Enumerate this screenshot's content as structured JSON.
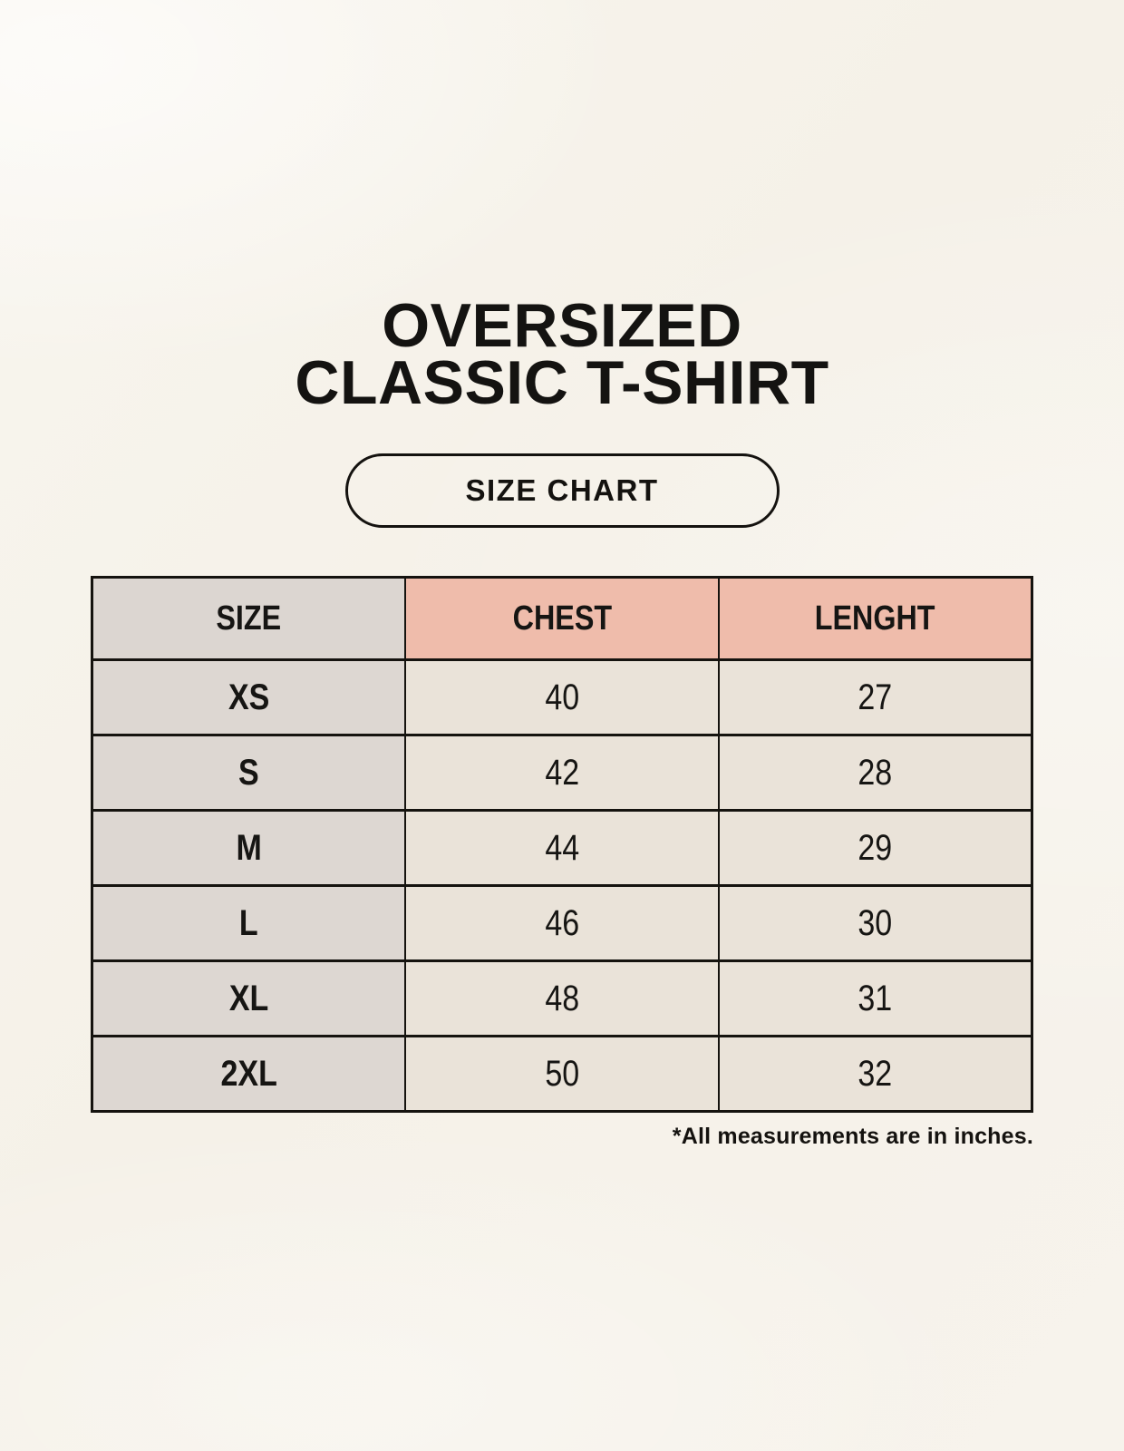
{
  "header": {
    "title_line1": "OVERSIZED",
    "title_line2": "CLASSIC T-SHIRT",
    "badge_label": "SIZE CHART"
  },
  "table": {
    "columns": [
      "SIZE",
      "CHEST",
      "LENGHT"
    ],
    "rows": [
      {
        "size": "XS",
        "chest": "40",
        "length": "27"
      },
      {
        "size": "S",
        "chest": "42",
        "length": "28"
      },
      {
        "size": "M",
        "chest": "44",
        "length": "29"
      },
      {
        "size": "L",
        "chest": "46",
        "length": "30"
      },
      {
        "size": "XL",
        "chest": "48",
        "length": "31"
      },
      {
        "size": "2XL",
        "chest": "50",
        "length": "32"
      }
    ]
  },
  "footnote": "*All measurements are in inches.",
  "colors": {
    "background": "#f6f2ea",
    "header_pink": "#efbcab",
    "header_gray": "#dcd6d1",
    "row_label_gray": "#ddd7d2",
    "cell_beige": "#eae3d9",
    "border": "#15130f",
    "text": "#141311"
  },
  "chart_data": {
    "type": "table",
    "title": "OVERSIZED CLASSIC T-SHIRT",
    "subtitle": "SIZE CHART",
    "columns": [
      "SIZE",
      "CHEST",
      "LENGHT"
    ],
    "rows": [
      [
        "XS",
        40,
        27
      ],
      [
        "S",
        42,
        28
      ],
      [
        "M",
        44,
        29
      ],
      [
        "L",
        46,
        30
      ],
      [
        "XL",
        48,
        31
      ],
      [
        "2XL",
        50,
        32
      ]
    ],
    "units": "inches",
    "note": "*All measurements are in inches."
  }
}
